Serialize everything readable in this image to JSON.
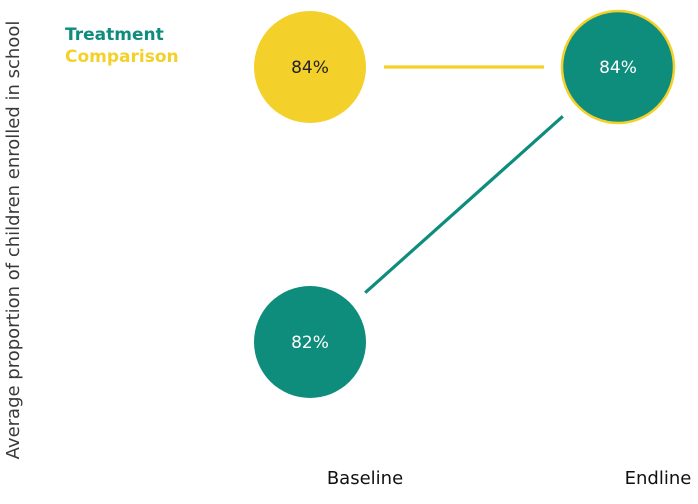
{
  "chart_data": {
    "type": "scatter",
    "ylabel": "Average proportion of children enrolled in school",
    "categories": [
      "Baseline",
      "Endline"
    ],
    "ylim": [
      80,
      85
    ],
    "legend_position": "top-left",
    "series": [
      {
        "name": "Treatment",
        "color": "#0e8c7c",
        "values": [
          82,
          84
        ],
        "labels": [
          "82%",
          "84%"
        ]
      },
      {
        "name": "Comparison",
        "color": "#f4d12a",
        "values": [
          84,
          84
        ],
        "labels": [
          "84%",
          "84%"
        ]
      }
    ]
  }
}
